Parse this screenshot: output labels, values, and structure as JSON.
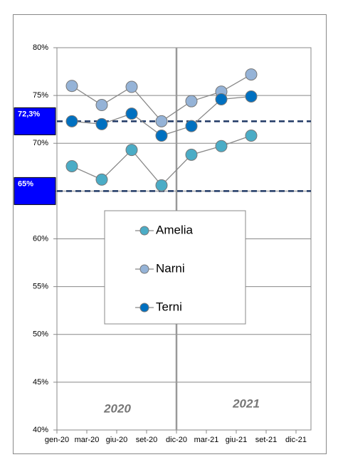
{
  "chart_data": {
    "type": "line",
    "categories": [
      "gen-20",
      "mar-20",
      "giu-20",
      "set-20",
      "dic-20",
      "mar-21",
      "giu-21",
      "set-21",
      "dic-21"
    ],
    "series": [
      {
        "name": "Amelia",
        "color": "#4bacc6",
        "values": [
          67.6,
          66.2,
          69.3,
          65.6,
          68.8,
          69.7,
          70.8,
          null,
          null
        ]
      },
      {
        "name": "Narni",
        "color": "#95b3d7",
        "values": [
          76.0,
          74.0,
          75.9,
          72.3,
          74.4,
          75.4,
          77.2,
          null,
          null
        ]
      },
      {
        "name": "Terni",
        "color": "#0070c0",
        "values": [
          72.3,
          72.0,
          73.1,
          70.8,
          71.8,
          74.6,
          74.9,
          null,
          null
        ]
      }
    ],
    "ylim": [
      40,
      80
    ],
    "yticks": [
      {
        "value": 40,
        "label": "40%"
      },
      {
        "value": 45,
        "label": "45%"
      },
      {
        "value": 50,
        "label": "50%"
      },
      {
        "value": 55,
        "label": "55%"
      },
      {
        "value": 60,
        "label": "60%"
      },
      {
        "value": 65,
        "label": "65%"
      },
      {
        "value": 70,
        "label": "70%"
      },
      {
        "value": 75,
        "label": "75%"
      },
      {
        "value": 80,
        "label": "80%"
      }
    ],
    "grid": true,
    "reference_lines": [
      {
        "value": 72.3,
        "label": "72,3%"
      },
      {
        "value": 65,
        "label": "65%"
      }
    ],
    "annotations": [
      "2020",
      "2021"
    ]
  }
}
